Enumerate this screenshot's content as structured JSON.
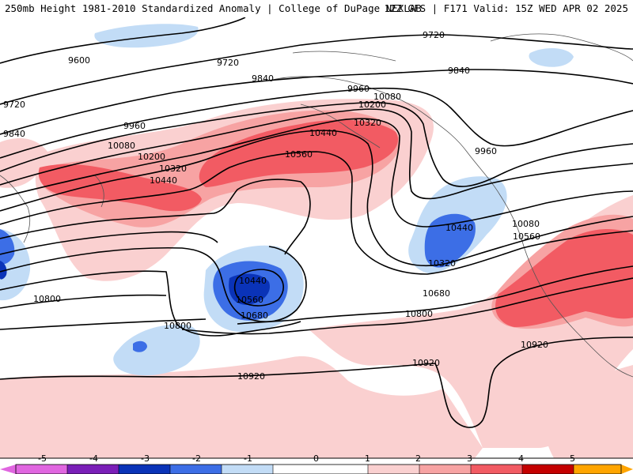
{
  "header": {
    "left": "250mb Height 1981-2010 Standardized Anomaly | College of DuPage NEXLAB",
    "right": "12Z GFS | F171 Valid: 15Z WED APR 02 2025"
  },
  "colors": {
    "neg5": "#e066e0",
    "neg4": "#7a1fb8",
    "neg3": "#0a33b8",
    "neg2": "#3c6ee6",
    "neg1": "#c2dcf6",
    "zero": "#ffffff",
    "pos1": "#fad0d0",
    "pos2": "#f7a3a3",
    "pos3": "#f25b63",
    "pos4": "#c40000",
    "pos5": "#ffa500",
    "land": "#555555",
    "contour": "#000000"
  },
  "colorbar": {
    "ticks": [
      "-5",
      "-4",
      "-3",
      "-2",
      "-1",
      "0",
      "1",
      "2",
      "3",
      "4",
      "5"
    ]
  },
  "contour_labels": [
    "9600",
    "9720",
    "9720",
    "9720",
    "9840",
    "9840",
    "9840",
    "9960",
    "9960",
    "9960",
    "10080",
    "10080",
    "10080",
    "10200",
    "10200",
    "10320",
    "10320",
    "10320",
    "10440",
    "10440",
    "10440",
    "10440",
    "10560",
    "10560",
    "10560",
    "10680",
    "10680",
    "10800",
    "10800",
    "10800",
    "10920",
    "10920",
    "10920"
  ]
}
